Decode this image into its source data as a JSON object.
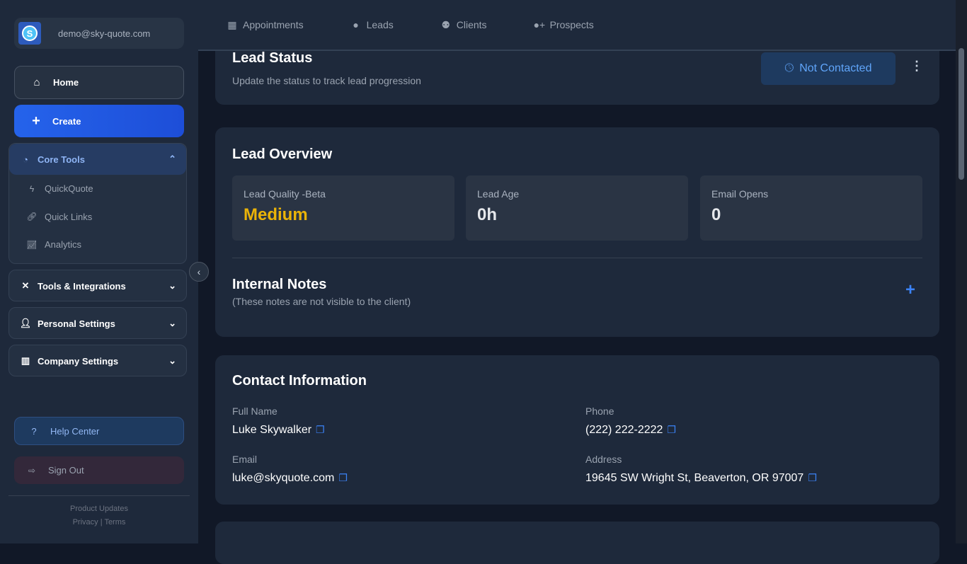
{
  "account": {
    "email": "demo@sky-quote.com",
    "logo_letter": "S"
  },
  "sidebar": {
    "home": "Home",
    "create": "Create",
    "core_tools": {
      "label": "Core Tools",
      "items": [
        {
          "label": "QuickQuote"
        },
        {
          "label": "Quick Links"
        },
        {
          "label": "Analytics"
        }
      ]
    },
    "groups": [
      {
        "label": "Tools & Integrations"
      },
      {
        "label": "Personal Settings"
      },
      {
        "label": "Company Settings"
      }
    ],
    "help": "Help Center",
    "signout": "Sign Out",
    "footer": {
      "updates": "Product Updates",
      "privacy": "Privacy",
      "sep": "|",
      "terms": "Terms"
    }
  },
  "topnav": [
    {
      "label": "Appointments",
      "icon": "calendar-icon"
    },
    {
      "label": "Leads",
      "icon": "user-icon"
    },
    {
      "label": "Clients",
      "icon": "users-icon"
    },
    {
      "label": "Prospects",
      "icon": "user-plus-icon"
    }
  ],
  "lead_status": {
    "title": "Lead Status",
    "subtitle": "Update the status to track lead progression",
    "status": "Not Contacted"
  },
  "overview": {
    "title": "Lead Overview",
    "stats": [
      {
        "label": "Lead Quality -Beta",
        "value": "Medium",
        "color": "#eab308"
      },
      {
        "label": "Lead Age",
        "value": "0h"
      },
      {
        "label": "Email Opens",
        "value": "0"
      }
    ]
  },
  "notes": {
    "title": "Internal Notes",
    "subtitle": "(These notes are not visible to the client)"
  },
  "contact": {
    "title": "Contact Information",
    "full_name_label": "Full Name",
    "full_name": "Luke Skywalker",
    "phone_label": "Phone",
    "phone": "(222) 222-2222",
    "email_label": "Email",
    "email": "luke@skyquote.com",
    "address_label": "Address",
    "address": "19645 SW Wright St, Beaverton, OR 97007"
  },
  "colors": {
    "accent": "#2563eb",
    "quality_medium": "#eab308"
  }
}
